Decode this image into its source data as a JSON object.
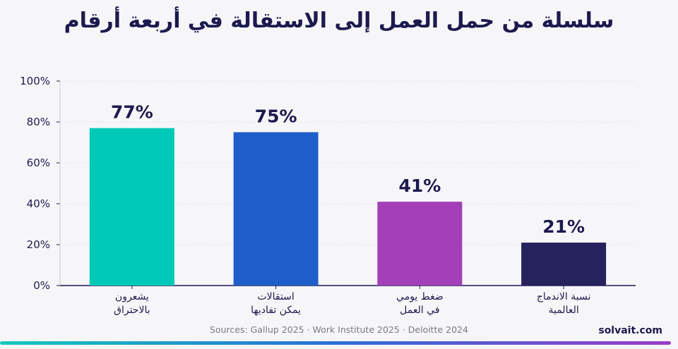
{
  "title": "سلسلة من حمل العمل إلى الاستقالة في أربعة أرقام",
  "source": "Sources: Gallup 2025 · Work Institute 2025 · Deloitte 2024",
  "brand": "solvait.com",
  "colors": {
    "bar1": "#00c9b8",
    "bar2": "#1f5ec9",
    "bar3": "#a33fb8",
    "bar4": "#25225e",
    "text": "#1c1a4e",
    "bottom_gradient": [
      "#14c8be",
      "#2a6fd6",
      "#9b3cc8"
    ]
  },
  "chart_data": {
    "type": "bar",
    "categories": [
      [
        "يشعرون",
        "بالاحتراق"
      ],
      [
        "استقالات",
        "يمكن تفاديها"
      ],
      [
        "ضغط يومي",
        "في العمل"
      ],
      [
        "نسبة الاندماج",
        "العالمية"
      ]
    ],
    "values": [
      77,
      75,
      41,
      21
    ],
    "data_labels": [
      "77%",
      "75%",
      "41%",
      "21%"
    ],
    "ylim": [
      0,
      100
    ],
    "yticks": [
      0,
      20,
      40,
      60,
      80,
      100
    ],
    "ytick_labels": [
      "0%",
      "20%",
      "40%",
      "60%",
      "80%",
      "100%"
    ],
    "grid": true
  }
}
